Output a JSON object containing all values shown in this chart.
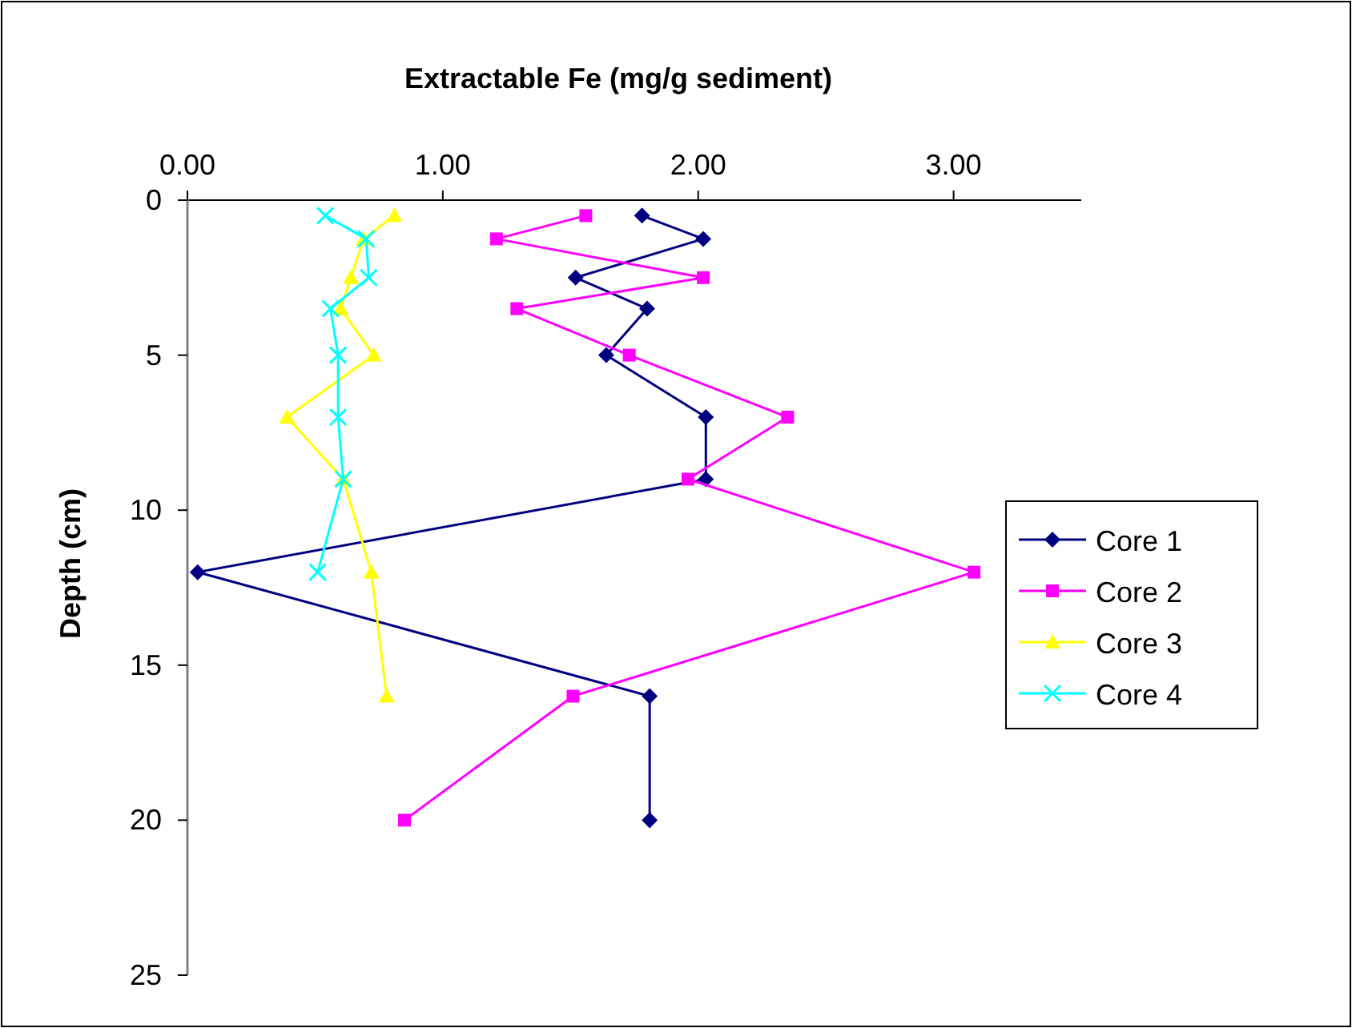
{
  "chart_data": {
    "type": "line",
    "xlabel": "Extractable Fe (mg/g sediment)",
    "ylabel": "Depth (cm)",
    "xlim": [
      0,
      3.5
    ],
    "xticks": [
      {
        "value": 0,
        "label": "0.00"
      },
      {
        "value": 1,
        "label": "1.00"
      },
      {
        "value": 2,
        "label": "2.00"
      },
      {
        "value": 3,
        "label": "3.00"
      }
    ],
    "ylim": [
      25,
      0
    ],
    "yticks": [
      0,
      5,
      10,
      15,
      20,
      25
    ],
    "grid": false,
    "legend": "right",
    "series": [
      {
        "name": "Core 1",
        "color": "#000080",
        "marker": "diamond",
        "x": [
          1.78,
          2.02,
          1.52,
          1.8,
          1.64,
          2.03,
          2.03,
          0.04,
          1.81,
          1.81
        ],
        "values": [
          0.5,
          1.25,
          2.5,
          3.5,
          5,
          7,
          9,
          12,
          16,
          20
        ]
      },
      {
        "name": "Core 2",
        "color": "#ff00ff",
        "marker": "square",
        "x": [
          1.56,
          1.21,
          2.02,
          1.29,
          1.73,
          2.35,
          1.96,
          3.08,
          1.51,
          0.85
        ],
        "values": [
          0.5,
          1.25,
          2.5,
          3.5,
          5,
          7,
          9,
          12,
          16,
          20
        ]
      },
      {
        "name": "Core 3",
        "color": "#ffff00",
        "marker": "triangle",
        "x": [
          0.81,
          0.69,
          0.64,
          0.6,
          0.73,
          0.39,
          0.61,
          0.72,
          0.78
        ],
        "values": [
          0.5,
          1.25,
          2.5,
          3.5,
          5,
          7,
          9,
          12,
          16
        ]
      },
      {
        "name": "Core 4",
        "color": "#00ffff",
        "marker": "cross",
        "x": [
          0.54,
          0.7,
          0.71,
          0.56,
          0.59,
          0.59,
          0.61,
          0.51
        ],
        "values": [
          0.5,
          1.25,
          2.5,
          3.5,
          5,
          7,
          9,
          12
        ]
      }
    ]
  }
}
